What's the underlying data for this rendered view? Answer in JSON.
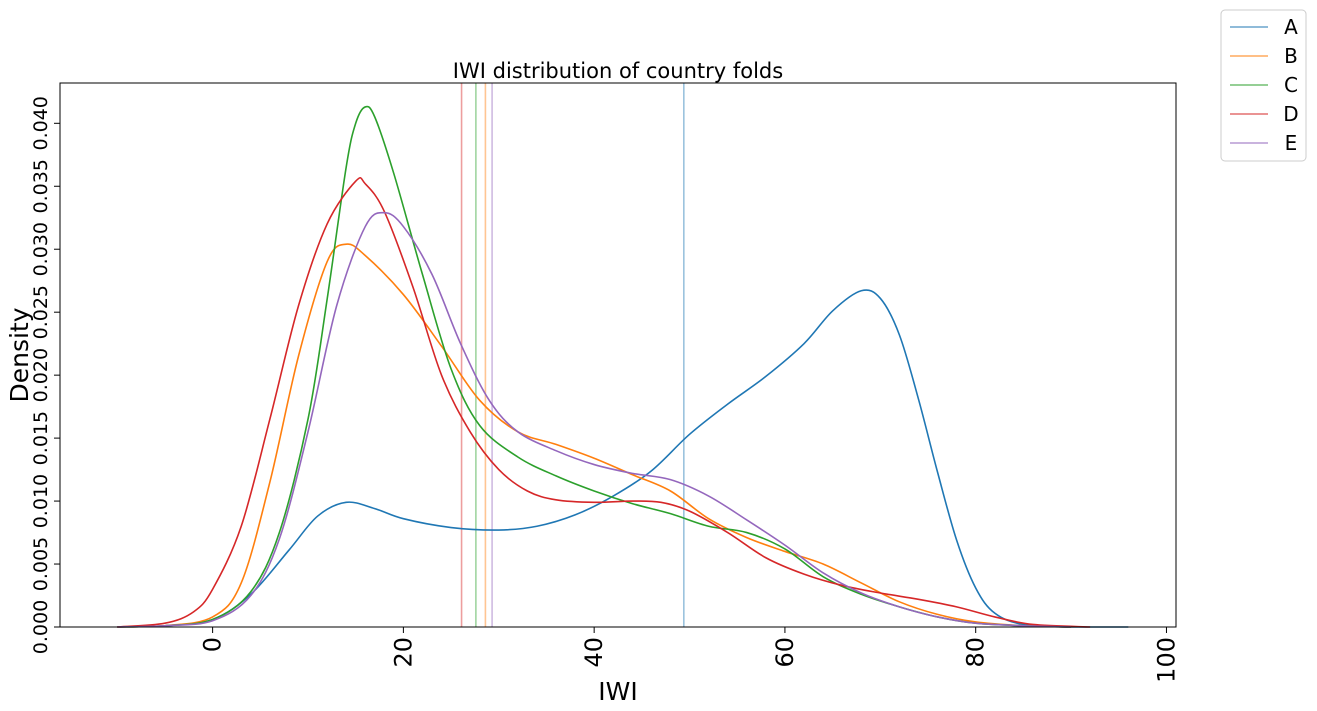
{
  "chart_data": {
    "type": "line",
    "title": "IWI distribution of country folds",
    "xlabel": "IWI",
    "ylabel": "Density",
    "xlim": [
      -16,
      101
    ],
    "ylim": [
      0,
      0.0432
    ],
    "xticks": [
      0,
      20,
      40,
      60,
      80,
      100
    ],
    "xtick_labels": [
      "0",
      "20",
      "40",
      "60",
      "80",
      "100"
    ],
    "yticks": [
      0,
      0.005,
      0.01,
      0.015,
      0.02,
      0.025,
      0.03,
      0.035,
      0.04
    ],
    "ytick_labels": [
      "0.000",
      "0.005",
      "0.010",
      "0.015",
      "0.020",
      "0.025",
      "0.030",
      "0.035",
      "0.040"
    ],
    "grid": false,
    "legend_position": "outside-top-right",
    "series": [
      {
        "name": "A",
        "color": "#1f77b4",
        "mean": 49.4,
        "points": [
          [
            -10,
            0
          ],
          [
            -5,
            0.0001
          ],
          [
            0,
            0.0006
          ],
          [
            4,
            0.0026
          ],
          [
            8,
            0.0061
          ],
          [
            11,
            0.0088
          ],
          [
            14,
            0.0099
          ],
          [
            17,
            0.0094
          ],
          [
            20,
            0.0086
          ],
          [
            25,
            0.0079
          ],
          [
            30,
            0.0077
          ],
          [
            34,
            0.008
          ],
          [
            38,
            0.0089
          ],
          [
            42,
            0.0104
          ],
          [
            46,
            0.0124
          ],
          [
            50,
            0.0153
          ],
          [
            54,
            0.0177
          ],
          [
            58,
            0.0199
          ],
          [
            62,
            0.0225
          ],
          [
            65,
            0.0251
          ],
          [
            68,
            0.0267
          ],
          [
            70,
            0.0261
          ],
          [
            72,
            0.0232
          ],
          [
            74,
            0.0181
          ],
          [
            76,
            0.0123
          ],
          [
            78,
            0.0069
          ],
          [
            80,
            0.0031
          ],
          [
            82,
            0.0011
          ],
          [
            85,
            0.0002
          ],
          [
            90,
            0.0
          ],
          [
            96,
            0.0
          ]
        ]
      },
      {
        "name": "B",
        "color": "#ff7f0e",
        "mean": 28.6,
        "points": [
          [
            -10,
            0
          ],
          [
            -5,
            0.0001
          ],
          [
            0,
            0.0008
          ],
          [
            3,
            0.0035
          ],
          [
            6,
            0.0115
          ],
          [
            9,
            0.0215
          ],
          [
            12,
            0.029
          ],
          [
            14,
            0.0304
          ],
          [
            16,
            0.0295
          ],
          [
            20,
            0.0264
          ],
          [
            24,
            0.0223
          ],
          [
            28,
            0.018
          ],
          [
            32,
            0.0155
          ],
          [
            36,
            0.0145
          ],
          [
            40,
            0.0134
          ],
          [
            44,
            0.0121
          ],
          [
            48,
            0.0108
          ],
          [
            52,
            0.0086
          ],
          [
            56,
            0.0071
          ],
          [
            60,
            0.006
          ],
          [
            64,
            0.005
          ],
          [
            68,
            0.0035
          ],
          [
            72,
            0.002
          ],
          [
            76,
            0.001
          ],
          [
            80,
            0.0004
          ],
          [
            85,
            0.0001
          ],
          [
            90,
            0.0
          ]
        ]
      },
      {
        "name": "C",
        "color": "#2ca02c",
        "mean": 27.6,
        "points": [
          [
            -10,
            0
          ],
          [
            -5,
            0.0001
          ],
          [
            0,
            0.0006
          ],
          [
            4,
            0.0028
          ],
          [
            7,
            0.0075
          ],
          [
            10,
            0.0165
          ],
          [
            12,
            0.026
          ],
          [
            14,
            0.0365
          ],
          [
            15,
            0.04
          ],
          [
            16,
            0.0413
          ],
          [
            17,
            0.0405
          ],
          [
            19,
            0.036
          ],
          [
            22,
            0.028
          ],
          [
            25,
            0.0205
          ],
          [
            28,
            0.016
          ],
          [
            32,
            0.0135
          ],
          [
            36,
            0.012
          ],
          [
            40,
            0.0108
          ],
          [
            44,
            0.0098
          ],
          [
            48,
            0.009
          ],
          [
            52,
            0.008
          ],
          [
            56,
            0.0075
          ],
          [
            60,
            0.0062
          ],
          [
            64,
            0.004
          ],
          [
            68,
            0.0026
          ],
          [
            72,
            0.0016
          ],
          [
            76,
            0.0008
          ],
          [
            80,
            0.0003
          ],
          [
            85,
            0.0001
          ],
          [
            90,
            0.0
          ]
        ]
      },
      {
        "name": "D",
        "color": "#d62728",
        "mean": 26.1,
        "points": [
          [
            -10,
            0
          ],
          [
            -5,
            0.0003
          ],
          [
            -2,
            0.0012
          ],
          [
            0,
            0.003
          ],
          [
            3,
            0.008
          ],
          [
            6,
            0.0165
          ],
          [
            9,
            0.0255
          ],
          [
            12,
            0.032
          ],
          [
            15,
            0.0354
          ],
          [
            16,
            0.0352
          ],
          [
            18,
            0.033
          ],
          [
            21,
            0.027
          ],
          [
            24,
            0.02
          ],
          [
            27,
            0.0155
          ],
          [
            30,
            0.0125
          ],
          [
            33,
            0.0108
          ],
          [
            36,
            0.0101
          ],
          [
            40,
            0.0099
          ],
          [
            44,
            0.01
          ],
          [
            47,
            0.0099
          ],
          [
            50,
            0.0092
          ],
          [
            54,
            0.0075
          ],
          [
            58,
            0.0055
          ],
          [
            62,
            0.0042
          ],
          [
            66,
            0.0033
          ],
          [
            70,
            0.0027
          ],
          [
            74,
            0.0022
          ],
          [
            78,
            0.0016
          ],
          [
            82,
            0.0008
          ],
          [
            86,
            0.0002
          ],
          [
            92,
            0.0
          ]
        ]
      },
      {
        "name": "E",
        "color": "#9467bd",
        "mean": 29.3,
        "points": [
          [
            -10,
            0
          ],
          [
            -5,
            0.0001
          ],
          [
            0,
            0.0005
          ],
          [
            4,
            0.0025
          ],
          [
            7,
            0.007
          ],
          [
            10,
            0.0155
          ],
          [
            13,
            0.0255
          ],
          [
            16,
            0.0318
          ],
          [
            18,
            0.0329
          ],
          [
            20,
            0.0318
          ],
          [
            23,
            0.028
          ],
          [
            26,
            0.0225
          ],
          [
            29,
            0.018
          ],
          [
            32,
            0.0155
          ],
          [
            36,
            0.014
          ],
          [
            40,
            0.0129
          ],
          [
            44,
            0.0122
          ],
          [
            48,
            0.0117
          ],
          [
            52,
            0.0104
          ],
          [
            56,
            0.0085
          ],
          [
            60,
            0.0065
          ],
          [
            64,
            0.0043
          ],
          [
            68,
            0.0027
          ],
          [
            72,
            0.0016
          ],
          [
            76,
            0.0008
          ],
          [
            80,
            0.0003
          ],
          [
            85,
            0.0001
          ],
          [
            90,
            0.0
          ]
        ]
      }
    ]
  }
}
